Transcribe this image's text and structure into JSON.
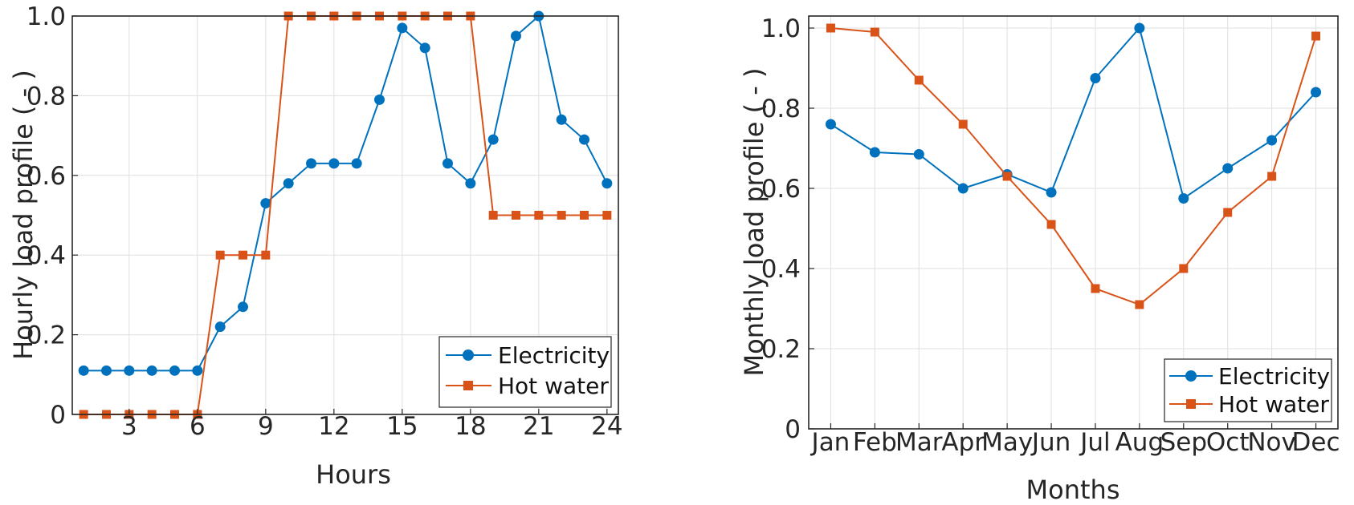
{
  "colors": {
    "electricity": "#0072BD",
    "hot_water": "#D95319"
  },
  "chart_data": [
    {
      "type": "line",
      "xlabel": "Hours",
      "ylabel": "Hourly load profile ( - )",
      "xlim": [
        0.5,
        24.5
      ],
      "ylim": [
        0,
        1
      ],
      "x": [
        1,
        2,
        3,
        4,
        5,
        6,
        7,
        8,
        9,
        10,
        11,
        12,
        13,
        14,
        15,
        16,
        17,
        18,
        19,
        20,
        21,
        22,
        23,
        24
      ],
      "xticks": [
        3,
        6,
        9,
        12,
        15,
        18,
        21,
        24
      ],
      "xtick_labels": [
        "3",
        "6",
        "9",
        "12",
        "15",
        "18",
        "21",
        "24"
      ],
      "yticks": [
        0,
        0.2,
        0.4,
        0.6,
        0.8,
        1.0
      ],
      "ytick_labels": [
        "0",
        "0.2",
        "0.4",
        "0.6",
        "0.8",
        "1.0"
      ],
      "grid": true,
      "legend_position": "bottom-right",
      "series": [
        {
          "name": "Electricity",
          "marker": "circle",
          "values": [
            0.11,
            0.11,
            0.11,
            0.11,
            0.11,
            0.11,
            0.22,
            0.27,
            0.53,
            0.58,
            0.63,
            0.63,
            0.63,
            0.79,
            0.97,
            0.92,
            0.63,
            0.58,
            0.69,
            0.95,
            1.0,
            0.74,
            0.69,
            0.58
          ]
        },
        {
          "name": "Hot water",
          "marker": "square",
          "values": [
            0,
            0,
            0,
            0,
            0,
            0,
            0.4,
            0.4,
            0.4,
            1.0,
            1.0,
            1.0,
            1.0,
            1.0,
            1.0,
            1.0,
            1.0,
            1.0,
            0.5,
            0.5,
            0.5,
            0.5,
            0.5,
            0.5
          ]
        }
      ]
    },
    {
      "type": "line",
      "xlabel": "Months",
      "ylabel": "Monthly load profile ( - )",
      "ylim": [
        0,
        1.03
      ],
      "categories": [
        "Jan",
        "Feb",
        "Mar",
        "Apr",
        "May",
        "Jun",
        "Jul",
        "Aug",
        "Sep",
        "Oct",
        "Nov",
        "Dec"
      ],
      "yticks": [
        0,
        0.2,
        0.4,
        0.6,
        0.8,
        1.0
      ],
      "ytick_labels": [
        "0",
        "0.2",
        "0.4",
        "0.6",
        "0.8",
        "1.0"
      ],
      "grid": true,
      "legend_position": "bottom-right",
      "series": [
        {
          "name": "Electricity",
          "marker": "circle",
          "values": [
            0.76,
            0.69,
            0.685,
            0.6,
            0.635,
            0.59,
            0.875,
            1.0,
            0.575,
            0.65,
            0.72,
            0.84
          ]
        },
        {
          "name": "Hot water",
          "marker": "square",
          "values": [
            1.0,
            0.99,
            0.87,
            0.76,
            0.63,
            0.51,
            0.35,
            0.31,
            0.4,
            0.54,
            0.63,
            0.98
          ]
        }
      ]
    }
  ]
}
